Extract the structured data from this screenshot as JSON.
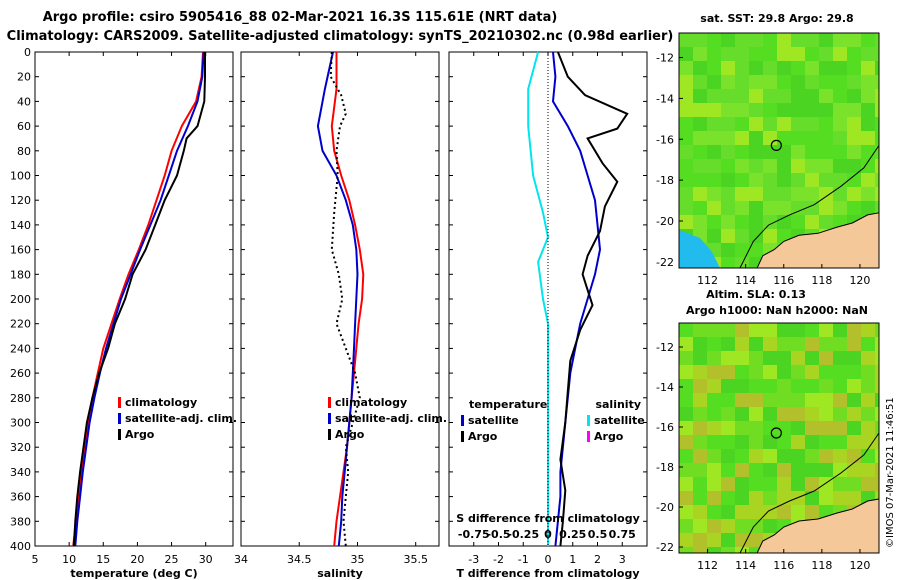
{
  "title": {
    "line1": "Argo profile: csiro 5905416_88 02-Mar-2021 16.3S 115.61E (NRT data)",
    "line2": "Climatology: CARS2009. Satellite-adjusted climatology: synTS_20210302.nc (0.98d earlier)"
  },
  "credit": "©IMOS 07-Mar-2021 11:46:51",
  "colors": {
    "climatology": "#ff0000",
    "satellite": "#0000cc",
    "argo": "#000000",
    "satellite_s": "#00e5ee",
    "argo_s": "#ff00ff",
    "land": "#f5c89a",
    "sst_low": "#22bbee",
    "sst_mid": "#55dd22",
    "sst_high": "#ddee22"
  },
  "depth_axis": {
    "ylim": [
      0,
      400
    ],
    "ticks": [
      "0",
      "20",
      "40",
      "60",
      "80",
      "100",
      "120",
      "140",
      "160",
      "180",
      "200",
      "220",
      "240",
      "260",
      "280",
      "300",
      "320",
      "340",
      "360",
      "380",
      "400"
    ]
  },
  "chart_data": [
    {
      "id": "temperature",
      "type": "line",
      "xlabel": "temperature (deg C)",
      "xlim": [
        5,
        34
      ],
      "xticks": [
        "5",
        "10",
        "15",
        "20",
        "25",
        "30"
      ],
      "legend": [
        "climatology",
        "satellite-adj. clim.",
        "Argo"
      ],
      "series": [
        {
          "name": "climatology",
          "color": "#ff0000",
          "points": [
            [
              29.6,
              0
            ],
            [
              29.4,
              20
            ],
            [
              28.6,
              40
            ],
            [
              26.5,
              60
            ],
            [
              25,
              80
            ],
            [
              24,
              100
            ],
            [
              22.8,
              120
            ],
            [
              21.6,
              140
            ],
            [
              20.2,
              160
            ],
            [
              18.7,
              180
            ],
            [
              17.4,
              200
            ],
            [
              16.2,
              220
            ],
            [
              15,
              240
            ],
            [
              14.2,
              260
            ],
            [
              13.4,
              280
            ],
            [
              12.8,
              300
            ],
            [
              12.3,
              320
            ],
            [
              11.8,
              340
            ],
            [
              11.4,
              360
            ],
            [
              11.0,
              380
            ],
            [
              10.6,
              400
            ]
          ]
        },
        {
          "name": "satellite-adj. clim.",
          "color": "#0000cc",
          "points": [
            [
              29.7,
              0
            ],
            [
              29.5,
              20
            ],
            [
              28.8,
              40
            ],
            [
              27.4,
              60
            ],
            [
              25.8,
              80
            ],
            [
              24.6,
              100
            ],
            [
              23.4,
              120
            ],
            [
              21.9,
              140
            ],
            [
              20.4,
              160
            ],
            [
              19,
              180
            ],
            [
              17.6,
              200
            ],
            [
              16.5,
              220
            ],
            [
              15.4,
              240
            ],
            [
              14.5,
              260
            ],
            [
              13.7,
              280
            ],
            [
              13,
              300
            ],
            [
              12.5,
              320
            ],
            [
              12,
              340
            ],
            [
              11.6,
              360
            ],
            [
              11.2,
              380
            ],
            [
              10.9,
              400
            ]
          ]
        },
        {
          "name": "Argo",
          "color": "#000000",
          "points": [
            [
              29.9,
              0
            ],
            [
              29.9,
              20
            ],
            [
              29.8,
              40
            ],
            [
              28.8,
              60
            ],
            [
              27.2,
              70
            ],
            [
              26.8,
              80
            ],
            [
              25.8,
              100
            ],
            [
              24,
              120
            ],
            [
              22.6,
              140
            ],
            [
              21.2,
              160
            ],
            [
              19.3,
              180
            ],
            [
              18.2,
              200
            ],
            [
              16.7,
              220
            ],
            [
              15.7,
              240
            ],
            [
              14.4,
              260
            ],
            [
              13.4,
              280
            ],
            [
              12.6,
              300
            ],
            [
              12.1,
              320
            ],
            [
              11.6,
              340
            ],
            [
              11.2,
              360
            ],
            [
              10.9,
              380
            ],
            [
              10.7,
              400
            ]
          ]
        }
      ]
    },
    {
      "id": "salinity",
      "type": "line",
      "xlabel": "salinity",
      "xlim": [
        34,
        35.7
      ],
      "xticks": [
        "34",
        "34.5",
        "35",
        "35.5"
      ],
      "legend": [
        "climatology",
        "satellite-adj. clim.",
        "Argo"
      ],
      "series": [
        {
          "name": "climatology",
          "color": "#ff0000",
          "points": [
            [
              34.82,
              0
            ],
            [
              34.82,
              30
            ],
            [
              34.78,
              60
            ],
            [
              34.8,
              80
            ],
            [
              34.86,
              100
            ],
            [
              34.93,
              120
            ],
            [
              34.98,
              140
            ],
            [
              35.02,
              160
            ],
            [
              35.05,
              180
            ],
            [
              35.04,
              200
            ],
            [
              35.01,
              220
            ],
            [
              34.99,
              240
            ],
            [
              34.97,
              260
            ],
            [
              34.95,
              280
            ],
            [
              34.93,
              300
            ],
            [
              34.91,
              320
            ],
            [
              34.88,
              340
            ],
            [
              34.85,
              360
            ],
            [
              34.82,
              380
            ],
            [
              34.8,
              400
            ]
          ]
        },
        {
          "name": "satellite-adj. clim.",
          "color": "#0000cc",
          "points": [
            [
              34.79,
              0
            ],
            [
              34.72,
              30
            ],
            [
              34.66,
              60
            ],
            [
              34.7,
              80
            ],
            [
              34.82,
              100
            ],
            [
              34.9,
              120
            ],
            [
              34.96,
              140
            ],
            [
              34.99,
              160
            ],
            [
              35,
              180
            ],
            [
              34.99,
              200
            ],
            [
              34.98,
              220
            ],
            [
              34.97,
              240
            ],
            [
              34.96,
              260
            ],
            [
              34.95,
              280
            ],
            [
              34.93,
              300
            ],
            [
              34.91,
              320
            ],
            [
              34.89,
              340
            ],
            [
              34.87,
              360
            ],
            [
              34.86,
              380
            ],
            [
              34.84,
              400
            ]
          ]
        },
        {
          "name": "Argo",
          "color": "#000000",
          "dashed": true,
          "points": [
            [
              34.78,
              0
            ],
            [
              34.77,
              20
            ],
            [
              34.86,
              35
            ],
            [
              34.9,
              50
            ],
            [
              34.85,
              60
            ],
            [
              34.82,
              80
            ],
            [
              34.83,
              100
            ],
            [
              34.8,
              130
            ],
            [
              34.78,
              160
            ],
            [
              34.84,
              180
            ],
            [
              34.87,
              200
            ],
            [
              34.82,
              220
            ],
            [
              34.9,
              240
            ],
            [
              34.98,
              260
            ],
            [
              35.02,
              280
            ],
            [
              34.96,
              300
            ],
            [
              34.9,
              320
            ],
            [
              34.92,
              340
            ],
            [
              34.9,
              360
            ],
            [
              34.88,
              380
            ],
            [
              34.9,
              400
            ]
          ]
        }
      ]
    },
    {
      "id": "difference",
      "type": "line",
      "xlabel": "T difference from climatology",
      "xlim": [
        -4,
        4
      ],
      "xticks": [
        "-3",
        "-2",
        "-1",
        "0",
        "1",
        "2",
        "3"
      ],
      "top_axis_label": "S difference from climatology",
      "top_xticks": [
        "-0.75",
        "-0.5",
        "-0.25",
        "0",
        "0.25",
        "0.5",
        "0.75"
      ],
      "legend_t": [
        "temperature",
        "satellite",
        "Argo"
      ],
      "legend_s": [
        "salinity",
        "satellite",
        "Argo"
      ],
      "series": [
        {
          "name": "S satellite",
          "color": "#00e5ee",
          "points": [
            [
              -0.1,
              0
            ],
            [
              -0.2,
              30
            ],
            [
              -0.2,
              60
            ],
            [
              -0.15,
              100
            ],
            [
              -0.05,
              130
            ],
            [
              0,
              150
            ],
            [
              -0.1,
              170
            ],
            [
              -0.05,
              200
            ],
            [
              0,
              220
            ],
            [
              0,
              260
            ],
            [
              0,
              300
            ],
            [
              0,
              340
            ],
            [
              0,
              380
            ],
            [
              0,
              400
            ]
          ]
        },
        {
          "name": "T satellite",
          "color": "#0000cc",
          "points": [
            [
              0.2,
              0
            ],
            [
              0.3,
              20
            ],
            [
              0.2,
              40
            ],
            [
              0.8,
              60
            ],
            [
              1.3,
              80
            ],
            [
              1.6,
              100
            ],
            [
              1.9,
              120
            ],
            [
              2,
              140
            ],
            [
              2.1,
              160
            ],
            [
              1.9,
              180
            ],
            [
              1.6,
              200
            ],
            [
              1.3,
              220
            ],
            [
              1.1,
              240
            ],
            [
              0.9,
              260
            ],
            [
              0.8,
              280
            ],
            [
              0.7,
              300
            ],
            [
              0.6,
              320
            ],
            [
              0.5,
              340
            ],
            [
              0.5,
              360
            ],
            [
              0.4,
              380
            ],
            [
              0.3,
              400
            ]
          ]
        },
        {
          "name": "T Argo",
          "color": "#000000",
          "points": [
            [
              0.4,
              0
            ],
            [
              0.8,
              20
            ],
            [
              1.5,
              35
            ],
            [
              3.2,
              50
            ],
            [
              2.8,
              62
            ],
            [
              1.6,
              70
            ],
            [
              2.2,
              90
            ],
            [
              2.8,
              105
            ],
            [
              2.3,
              125
            ],
            [
              2.1,
              145
            ],
            [
              1.6,
              165
            ],
            [
              1.4,
              180
            ],
            [
              1.8,
              205
            ],
            [
              1.3,
              225
            ],
            [
              0.9,
              250
            ],
            [
              0.8,
              275
            ],
            [
              0.7,
              300
            ],
            [
              0.5,
              330
            ],
            [
              0.7,
              355
            ],
            [
              0.6,
              380
            ],
            [
              0.5,
              400
            ]
          ]
        }
      ]
    },
    {
      "id": "sst_map",
      "type": "heatmap",
      "title": "sat. SST: 29.8 Argo: 29.8",
      "xlim": [
        110.5,
        121
      ],
      "ylim": [
        -22.3,
        -10.8
      ],
      "xticks": [
        "112",
        "114",
        "116",
        "118",
        "120"
      ],
      "yticks": [
        "-12",
        "-14",
        "-16",
        "-18",
        "-20",
        "-22"
      ],
      "marker": {
        "lon": 115.61,
        "lat": -16.3
      }
    },
    {
      "id": "sla_map",
      "type": "heatmap",
      "title1": "Altim. SLA: 0.13",
      "title2": "Argo h1000: NaN h2000: NaN",
      "xlim": [
        110.5,
        121
      ],
      "ylim": [
        -22.3,
        -10.8
      ],
      "xticks": [
        "112",
        "114",
        "116",
        "118",
        "120"
      ],
      "yticks": [
        "-12",
        "-14",
        "-16",
        "-18",
        "-20",
        "-22"
      ],
      "marker": {
        "lon": 115.61,
        "lat": -16.3
      }
    }
  ]
}
